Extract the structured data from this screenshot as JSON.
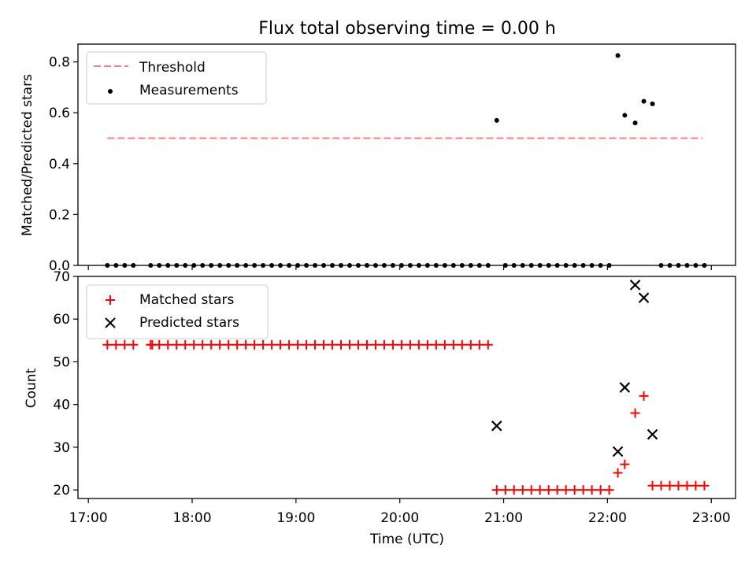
{
  "figure": {
    "title": "Flux total observing time = 0.00 h",
    "xlabel": "Time (UTC)",
    "xtick_labels": [
      "17:00",
      "18:00",
      "19:00",
      "20:00",
      "21:00",
      "22:00",
      "23:00"
    ]
  },
  "chart_data": [
    {
      "type": "scatter",
      "panel": "top",
      "ylabel": "Matched/Predicted stars",
      "xlim": [
        "16:54",
        "23:14"
      ],
      "ylim": [
        0,
        0.87
      ],
      "yticks": [
        "0.0",
        "0.2",
        "0.4",
        "0.6",
        "0.8"
      ],
      "legend_position": "upper-left",
      "threshold": {
        "name": "Threshold",
        "value": 0.5,
        "x_start": "17:11",
        "x_end": "22:55",
        "color": "#ff7f7f",
        "style": "dashed"
      },
      "series": [
        {
          "name": "Measurements",
          "color": "#000000",
          "marker": "dot",
          "points": [
            [
              "17:11",
              0
            ],
            [
              "17:16",
              0
            ],
            [
              "17:21",
              0
            ],
            [
              "17:26",
              0
            ],
            [
              "17:36",
              0
            ],
            [
              "17:41",
              0
            ],
            [
              "17:46",
              0
            ],
            [
              "17:51",
              0
            ],
            [
              "17:56",
              0
            ],
            [
              "18:01",
              0
            ],
            [
              "18:06",
              0
            ],
            [
              "18:11",
              0
            ],
            [
              "18:16",
              0
            ],
            [
              "18:21",
              0
            ],
            [
              "18:26",
              0
            ],
            [
              "18:31",
              0
            ],
            [
              "18:36",
              0
            ],
            [
              "18:41",
              0
            ],
            [
              "18:46",
              0
            ],
            [
              "18:51",
              0
            ],
            [
              "18:56",
              0
            ],
            [
              "19:01",
              0
            ],
            [
              "19:06",
              0
            ],
            [
              "19:11",
              0
            ],
            [
              "19:16",
              0
            ],
            [
              "19:21",
              0
            ],
            [
              "19:26",
              0
            ],
            [
              "19:31",
              0
            ],
            [
              "19:36",
              0
            ],
            [
              "19:41",
              0
            ],
            [
              "19:46",
              0
            ],
            [
              "19:51",
              0
            ],
            [
              "19:56",
              0
            ],
            [
              "20:01",
              0
            ],
            [
              "20:06",
              0
            ],
            [
              "20:11",
              0
            ],
            [
              "20:16",
              0
            ],
            [
              "20:21",
              0
            ],
            [
              "20:26",
              0
            ],
            [
              "20:31",
              0
            ],
            [
              "20:36",
              0
            ],
            [
              "20:41",
              0
            ],
            [
              "20:46",
              0
            ],
            [
              "20:51",
              0
            ],
            [
              "20:56",
              0.57
            ],
            [
              "21:01",
              0
            ],
            [
              "21:06",
              0
            ],
            [
              "21:11",
              0
            ],
            [
              "21:16",
              0
            ],
            [
              "21:21",
              0
            ],
            [
              "21:26",
              0
            ],
            [
              "21:31",
              0
            ],
            [
              "21:36",
              0
            ],
            [
              "21:41",
              0
            ],
            [
              "21:46",
              0
            ],
            [
              "21:51",
              0
            ],
            [
              "21:56",
              0
            ],
            [
              "22:01",
              0
            ],
            [
              "22:06",
              0.825
            ],
            [
              "22:10",
              0.59
            ],
            [
              "22:16",
              0.56
            ],
            [
              "22:21",
              0.645
            ],
            [
              "22:26",
              0.635
            ],
            [
              "22:31",
              0
            ],
            [
              "22:36",
              0
            ],
            [
              "22:41",
              0
            ],
            [
              "22:46",
              0
            ],
            [
              "22:51",
              0
            ],
            [
              "22:56",
              0
            ]
          ]
        }
      ]
    },
    {
      "type": "scatter",
      "panel": "bottom",
      "ylabel": "Count",
      "xlim": [
        "16:54",
        "23:14"
      ],
      "ylim": [
        18,
        70
      ],
      "yticks": [
        "20",
        "30",
        "40",
        "50",
        "60",
        "70"
      ],
      "legend_position": "upper-left",
      "series": [
        {
          "name": "Matched stars",
          "color": "#ff0000",
          "marker": "plus",
          "points": [
            [
              "17:11",
              54
            ],
            [
              "17:16",
              54
            ],
            [
              "17:21",
              54
            ],
            [
              "17:26",
              54
            ],
            [
              "17:36",
              54
            ],
            [
              "17:37",
              54
            ],
            [
              "17:41",
              54
            ],
            [
              "17:46",
              54
            ],
            [
              "17:51",
              54
            ],
            [
              "17:56",
              54
            ],
            [
              "18:01",
              54
            ],
            [
              "18:06",
              54
            ],
            [
              "18:11",
              54
            ],
            [
              "18:16",
              54
            ],
            [
              "18:21",
              54
            ],
            [
              "18:26",
              54
            ],
            [
              "18:31",
              54
            ],
            [
              "18:36",
              54
            ],
            [
              "18:41",
              54
            ],
            [
              "18:46",
              54
            ],
            [
              "18:51",
              54
            ],
            [
              "18:56",
              54
            ],
            [
              "19:01",
              54
            ],
            [
              "19:06",
              54
            ],
            [
              "19:11",
              54
            ],
            [
              "19:16",
              54
            ],
            [
              "19:21",
              54
            ],
            [
              "19:26",
              54
            ],
            [
              "19:31",
              54
            ],
            [
              "19:36",
              54
            ],
            [
              "19:41",
              54
            ],
            [
              "19:46",
              54
            ],
            [
              "19:51",
              54
            ],
            [
              "19:56",
              54
            ],
            [
              "20:01",
              54
            ],
            [
              "20:06",
              54
            ],
            [
              "20:11",
              54
            ],
            [
              "20:16",
              54
            ],
            [
              "20:21",
              54
            ],
            [
              "20:26",
              54
            ],
            [
              "20:31",
              54
            ],
            [
              "20:36",
              54
            ],
            [
              "20:41",
              54
            ],
            [
              "20:46",
              54
            ],
            [
              "20:51",
              54
            ],
            [
              "20:56",
              20
            ],
            [
              "21:01",
              20
            ],
            [
              "21:06",
              20
            ],
            [
              "21:11",
              20
            ],
            [
              "21:16",
              20
            ],
            [
              "21:21",
              20
            ],
            [
              "21:26",
              20
            ],
            [
              "21:31",
              20
            ],
            [
              "21:36",
              20
            ],
            [
              "21:41",
              20
            ],
            [
              "21:46",
              20
            ],
            [
              "21:51",
              20
            ],
            [
              "21:56",
              20
            ],
            [
              "22:01",
              20
            ],
            [
              "22:06",
              24
            ],
            [
              "22:10",
              26
            ],
            [
              "22:16",
              38
            ],
            [
              "22:21",
              42
            ],
            [
              "22:26",
              21
            ],
            [
              "22:31",
              21
            ],
            [
              "22:36",
              21
            ],
            [
              "22:41",
              21
            ],
            [
              "22:46",
              21
            ],
            [
              "22:51",
              21
            ],
            [
              "22:56",
              21
            ]
          ]
        },
        {
          "name": "Predicted stars",
          "color": "#000000",
          "marker": "x",
          "points": [
            [
              "20:56",
              35
            ],
            [
              "22:06",
              29
            ],
            [
              "22:10",
              44
            ],
            [
              "22:16",
              68
            ],
            [
              "22:21",
              65
            ],
            [
              "22:26",
              33
            ]
          ]
        }
      ]
    }
  ]
}
